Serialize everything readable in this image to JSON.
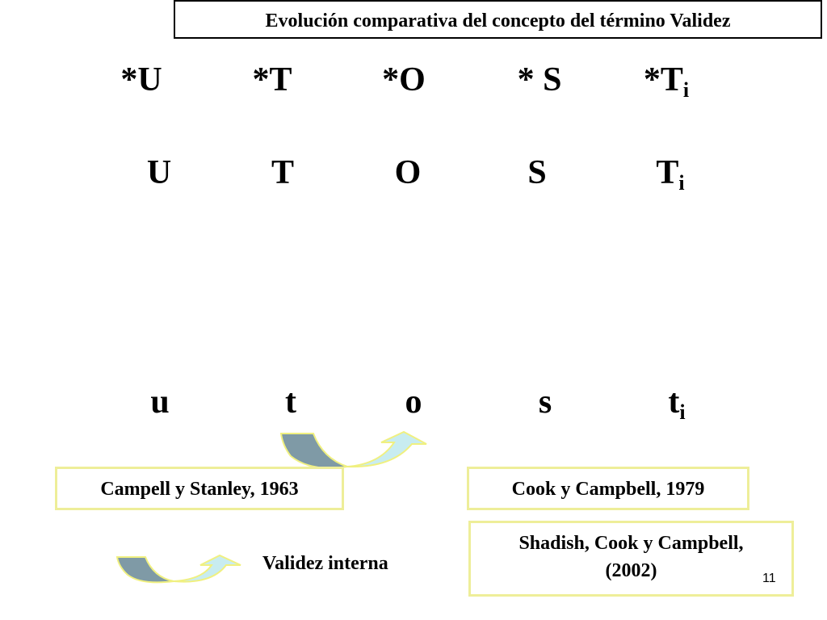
{
  "header": {
    "title": "Evolución comparativa del concepto del término Validez"
  },
  "rows": [
    [
      {
        "text": "*U"
      },
      {
        "text": "*T"
      },
      {
        "text": "*O"
      },
      {
        "text": "* S"
      },
      {
        "text": "*T",
        "sub": "i"
      }
    ],
    [
      {
        "text": "U"
      },
      {
        "text": "T"
      },
      {
        "text": "O"
      },
      {
        "text": "S"
      },
      {
        "text": "T",
        "sub": "i"
      }
    ],
    [
      {
        "text": "u"
      },
      {
        "text": "t"
      },
      {
        "text": "o"
      },
      {
        "text": "s"
      },
      {
        "text": "t",
        "sub": "i"
      }
    ]
  ],
  "references": [
    {
      "lines": [
        "Campell y Stanley, 1963"
      ]
    },
    {
      "lines": [
        "Cook y Campbell, 1979"
      ]
    },
    {
      "lines": [
        "Shadish, Cook y Campbell,",
        "(2002)"
      ]
    }
  ],
  "legend": {
    "label": "Validez interna"
  },
  "page_number": "11"
}
